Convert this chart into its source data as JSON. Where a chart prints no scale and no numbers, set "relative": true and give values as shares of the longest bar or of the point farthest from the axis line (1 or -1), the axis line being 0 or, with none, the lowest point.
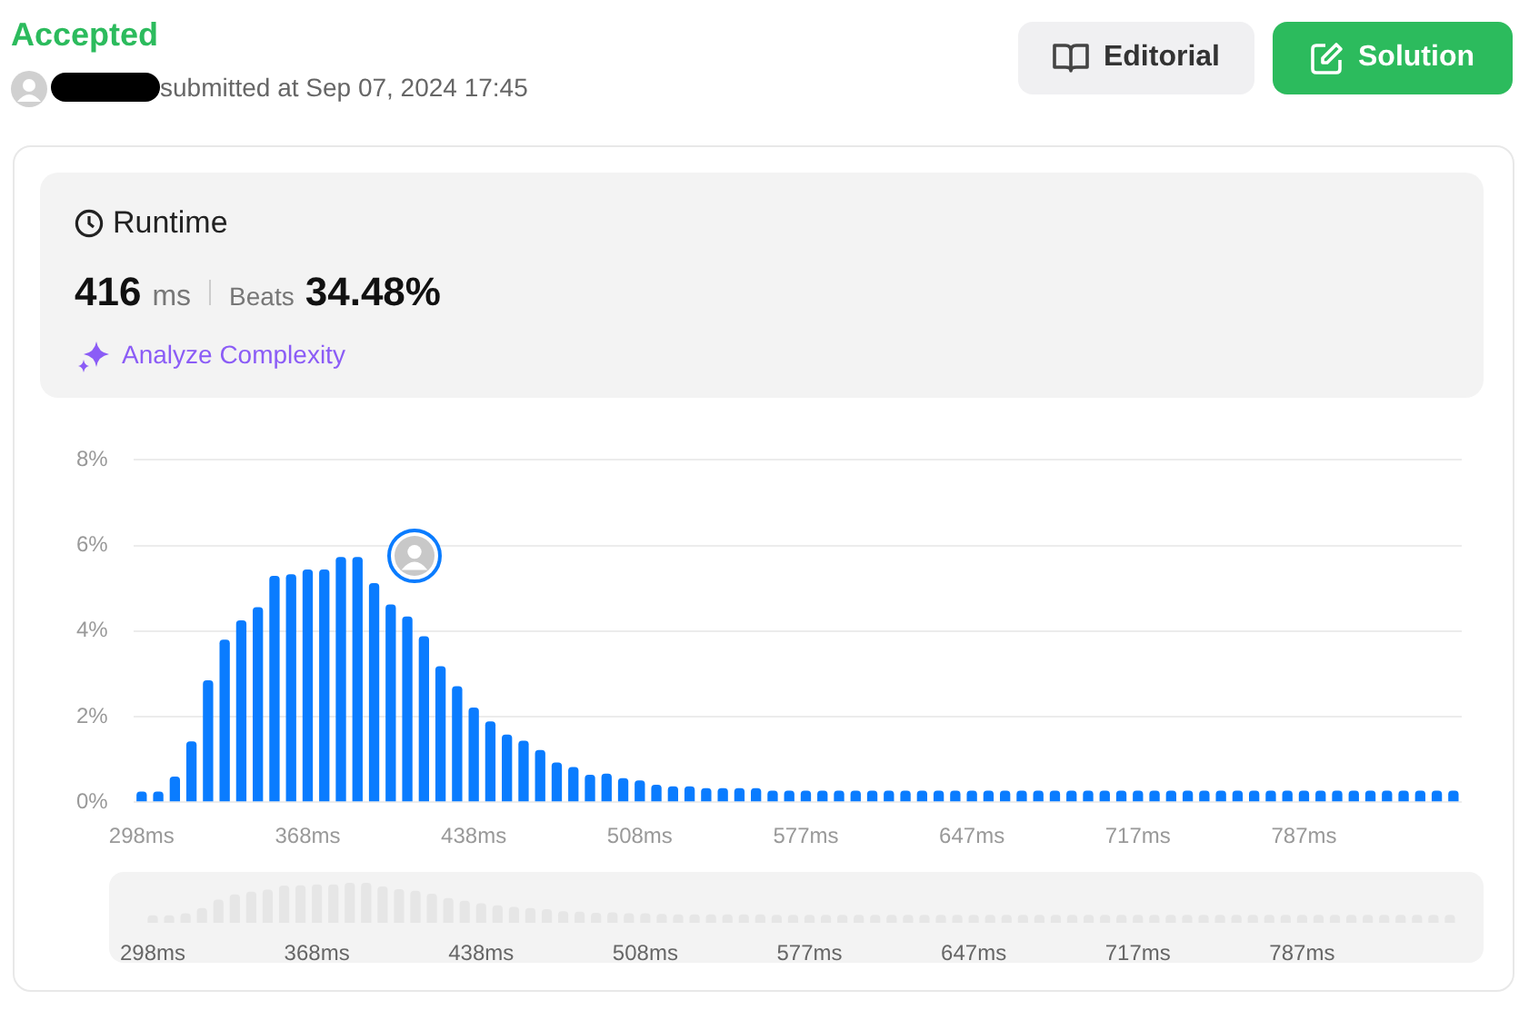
{
  "chart_data": [
    {
      "type": "bar",
      "title": "Runtime",
      "annotations": [
        "Accepted",
        "submitted at Sep 07, 2024 17:45",
        "Editorial",
        "Solution",
        "416",
        "ms",
        "Beats",
        "34.48%",
        "Analyze Complexity"
      ],
      "categories": [
        "298ms",
        null,
        null,
        null,
        null,
        null,
        null,
        null,
        null,
        null,
        "368ms",
        null,
        null,
        null,
        null,
        null,
        null,
        null,
        null,
        null,
        "438ms",
        null,
        null,
        null,
        null,
        null,
        null,
        null,
        null,
        null,
        "508ms",
        null,
        null,
        null,
        null,
        null,
        null,
        null,
        null,
        null,
        "577ms",
        null,
        null,
        null,
        null,
        null,
        null,
        null,
        null,
        null,
        "647ms",
        null,
        null,
        null,
        null,
        null,
        null,
        null,
        null,
        null,
        "717ms",
        null,
        null,
        null,
        null,
        null,
        null,
        null,
        null,
        null,
        "787ms",
        null,
        null,
        null,
        null,
        null,
        null,
        null,
        null,
        null
      ],
      "values": [
        0.25,
        0.25,
        0.6,
        1.42,
        2.85,
        3.8,
        4.25,
        4.56,
        5.29,
        5.33,
        5.44,
        5.44,
        5.73,
        5.73,
        5.12,
        4.62,
        4.34,
        3.88,
        3.18,
        2.71,
        2.21,
        1.89,
        1.58,
        1.44,
        1.22,
        0.93,
        0.82,
        0.64,
        0.67,
        0.56,
        0.51,
        0.41,
        0.37,
        0.37,
        0.33,
        0.33,
        0.33,
        0.33,
        0.27,
        0.27,
        0.27,
        0.27,
        0.27,
        0.27,
        0.27,
        0.27,
        0.27,
        0.27,
        0.27,
        0.27,
        0.27,
        0.27,
        0.27,
        0.27,
        0.27,
        0.27,
        0.27,
        0.27,
        0.27,
        0.27,
        0.27,
        0.27,
        0.27,
        0.27,
        0.27,
        0.27,
        0.27,
        0.27,
        0.27,
        0.27,
        0.27,
        0.27,
        0.27,
        0.27,
        0.27,
        0.27,
        0.27,
        0.27,
        0.27,
        0.27
      ],
      "color": "#0a7cff",
      "ylim": [
        0,
        8
      ],
      "yticks": [
        {
          "value": 0,
          "label": "0%"
        },
        {
          "value": 2,
          "label": "2%"
        },
        {
          "value": 4,
          "label": "4%"
        },
        {
          "value": 6,
          "label": "6%"
        },
        {
          "value": 8,
          "label": "8%"
        }
      ],
      "grid": "y"
    },
    {
      "type": "bar",
      "relative": true,
      "tick_labels": "x",
      "categories": [
        "298ms",
        null,
        null,
        null,
        null,
        null,
        null,
        null,
        null,
        null,
        "368ms",
        null,
        null,
        null,
        null,
        null,
        null,
        null,
        null,
        null,
        "438ms",
        null,
        null,
        null,
        null,
        null,
        null,
        null,
        null,
        null,
        "508ms",
        null,
        null,
        null,
        null,
        null,
        null,
        null,
        null,
        null,
        "577ms",
        null,
        null,
        null,
        null,
        null,
        null,
        null,
        null,
        null,
        "647ms",
        null,
        null,
        null,
        null,
        null,
        null,
        null,
        null,
        null,
        "717ms",
        null,
        null,
        null,
        null,
        null,
        null,
        null,
        null,
        null,
        "787ms",
        null,
        null,
        null,
        null,
        null,
        null,
        null,
        null,
        null
      ],
      "values": [
        0.19,
        0.19,
        0.24,
        0.37,
        0.58,
        0.71,
        0.78,
        0.83,
        0.93,
        0.94,
        0.96,
        0.96,
        1,
        1,
        0.91,
        0.84,
        0.8,
        0.73,
        0.62,
        0.55,
        0.49,
        0.44,
        0.4,
        0.37,
        0.34,
        0.29,
        0.28,
        0.25,
        0.26,
        0.24,
        0.24,
        0.22,
        0.21,
        0.21,
        0.21,
        0.21,
        0.21,
        0.21,
        0.2,
        0.2,
        0.2,
        0.2,
        0.2,
        0.2,
        0.2,
        0.2,
        0.2,
        0.2,
        0.2,
        0.2,
        0.2,
        0.2,
        0.2,
        0.2,
        0.2,
        0.2,
        0.2,
        0.2,
        0.2,
        0.2,
        0.2,
        0.2,
        0.2,
        0.2,
        0.2,
        0.2,
        0.2,
        0.2,
        0.2,
        0.2,
        0.2,
        0.2,
        0.2,
        0.2,
        0.2,
        0.2,
        0.2,
        0.2,
        0.2,
        0.2
      ],
      "color": "#e6e6e6"
    }
  ]
}
